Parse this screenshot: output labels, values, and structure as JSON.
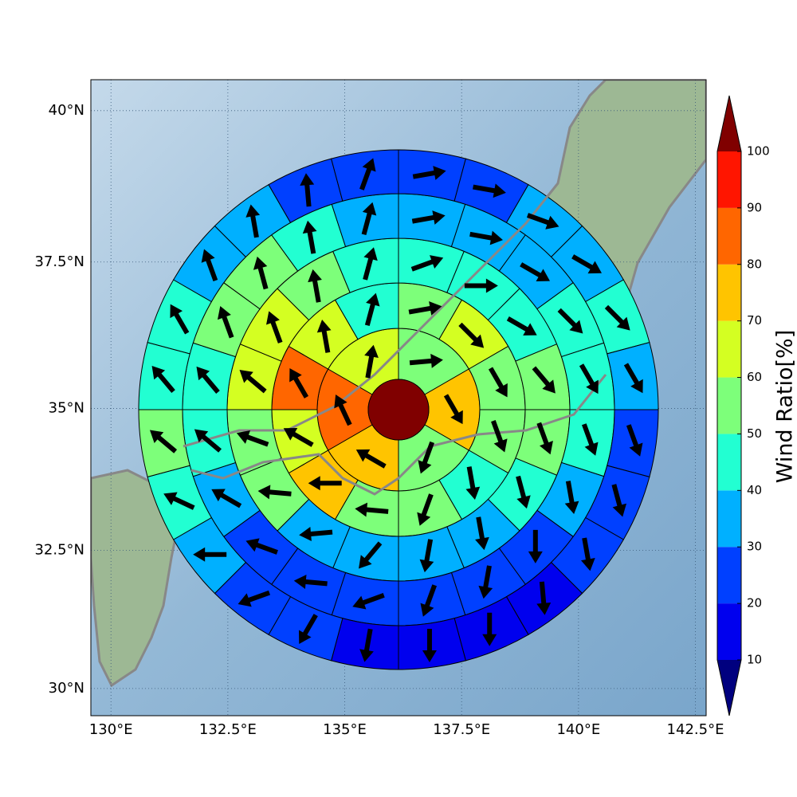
{
  "chart_data": {
    "type": "polar-sector-map",
    "projection": "mercator",
    "xlim": [
      129.57,
      142.73
    ],
    "ylim": [
      29.5,
      40.5
    ],
    "xticks": [
      {
        "value": 130,
        "label": "130°E"
      },
      {
        "value": 132.5,
        "label": "132.5°E"
      },
      {
        "value": 135,
        "label": "135°E"
      },
      {
        "value": 137.5,
        "label": "137.5°E"
      },
      {
        "value": 140,
        "label": "140°E"
      },
      {
        "value": 142.5,
        "label": "142.5°E"
      }
    ],
    "yticks": [
      {
        "value": 30,
        "label": "30°N"
      },
      {
        "value": 32.5,
        "label": "32.5°N"
      },
      {
        "value": 35,
        "label": "35°N"
      },
      {
        "value": 37.5,
        "label": "37.5°N"
      },
      {
        "value": 40,
        "label": "40°N"
      }
    ],
    "grid": true,
    "center_value": 102,
    "rings": [
      {
        "values": [
          55,
          75,
          55,
          75,
          85,
          65
        ],
        "directions": [
          85,
          150,
          200,
          300,
          335,
          10
        ]
      },
      {
        "values": [
          55,
          65,
          55,
          55,
          45,
          55,
          55,
          75,
          65,
          85,
          65,
          45
        ],
        "directions": [
          80,
          135,
          150,
          160,
          170,
          200,
          275,
          270,
          300,
          330,
          350,
          15
        ]
      },
      {
        "values": [
          45,
          45,
          45,
          55,
          55,
          45,
          35,
          35,
          35,
          35,
          55,
          55,
          65,
          65,
          55,
          45
        ],
        "directions": [
          70,
          90,
          120,
          140,
          160,
          165,
          170,
          190,
          220,
          265,
          275,
          290,
          310,
          340,
          350,
          15
        ]
      },
      {
        "values": [
          35,
          35,
          35,
          45,
          45,
          45,
          35,
          25,
          25,
          25,
          25,
          25,
          25,
          35,
          45,
          45,
          55,
          55,
          45,
          35
        ],
        "directions": [
          80,
          100,
          120,
          135,
          150,
          160,
          170,
          180,
          190,
          200,
          250,
          275,
          290,
          300,
          310,
          320,
          340,
          345,
          350,
          15
        ]
      },
      {
        "values": [
          25,
          25,
          35,
          35,
          45,
          35,
          25,
          25,
          25,
          15,
          15,
          15,
          15,
          25,
          25,
          35,
          45,
          55,
          45,
          45,
          35,
          35,
          25,
          25
        ],
        "directions": [
          80,
          100,
          110,
          120,
          135,
          150,
          160,
          165,
          170,
          175,
          180,
          180,
          190,
          210,
          250,
          270,
          295,
          310,
          320,
          330,
          340,
          350,
          355,
          20
        ]
      }
    ],
    "colorbar": {
      "label": "Wind Ratio[%]",
      "levels": [
        10,
        20,
        30,
        40,
        50,
        60,
        70,
        80,
        90,
        100
      ],
      "colors": [
        "#00007f",
        "#0000ee",
        "#0040ff",
        "#00b0ff",
        "#22ffd2",
        "#7dff7a",
        "#d4ff22",
        "#ffc400",
        "#ff6600",
        "#ff1500",
        "#800000"
      ],
      "ticks": [
        10,
        20,
        30,
        40,
        50,
        60,
        70,
        80,
        90,
        100
      ]
    }
  }
}
